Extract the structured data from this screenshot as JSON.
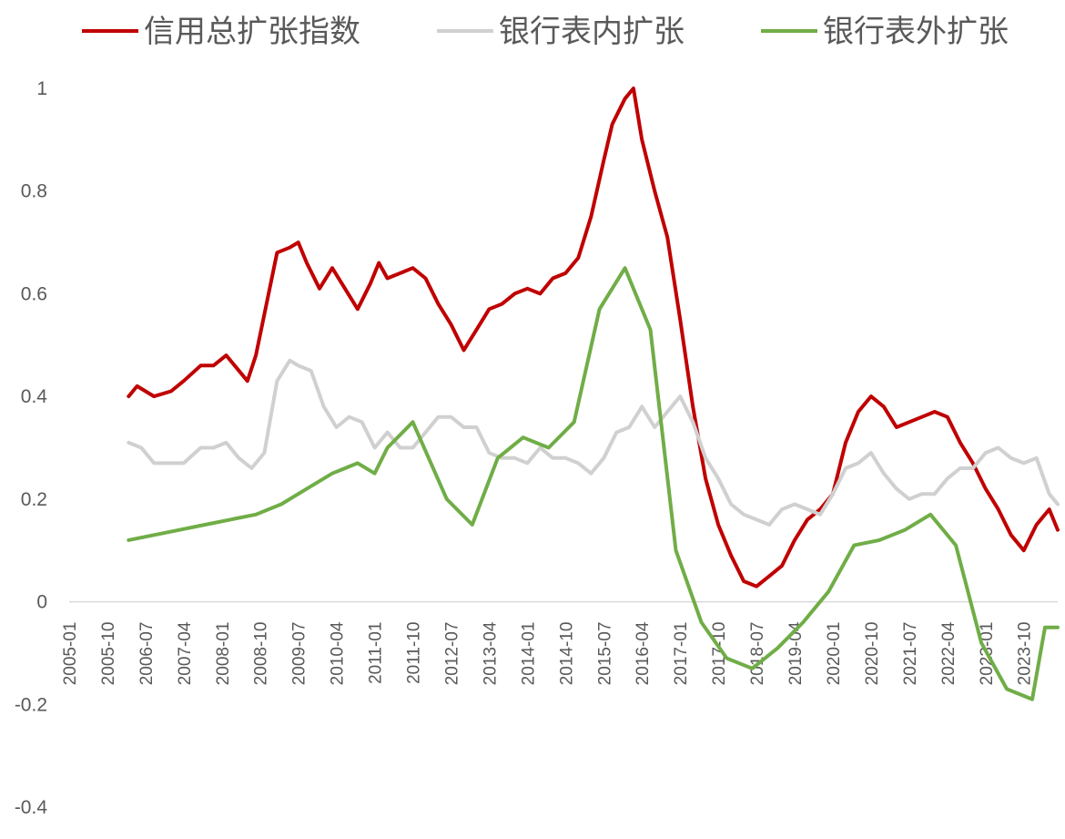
{
  "chart_data": {
    "type": "line",
    "title": "",
    "xlabel": "",
    "ylabel": "",
    "ylim": [
      -0.4,
      1.0
    ],
    "y_ticks": [
      "-0.4",
      "-0.2",
      "0",
      "0.2",
      "0.4",
      "0.6",
      "0.8",
      "1"
    ],
    "x_ticks": [
      "2005-01",
      "2005-10",
      "2006-07",
      "2007-04",
      "2008-01",
      "2008-10",
      "2009-07",
      "2010-04",
      "2011-01",
      "2011-10",
      "2012-07",
      "2013-04",
      "2014-01",
      "2014-10",
      "2015-07",
      "2016-04",
      "2017-01",
      "2017-10",
      "2018-07",
      "2019-04",
      "2020-01",
      "2020-10",
      "2021-07",
      "2022-04",
      "2023-01",
      "2023-10"
    ],
    "x_range": [
      "2005-01",
      "2024-06"
    ],
    "grid": false,
    "legend_position": "top",
    "series": [
      {
        "name": "信用总扩张指数",
        "color": "#C00000",
        "x": [
          "2006-03",
          "2006-05",
          "2006-09",
          "2007-01",
          "2007-04",
          "2007-08",
          "2007-11",
          "2008-02",
          "2008-04",
          "2008-07",
          "2008-09",
          "2008-12",
          "2009-02",
          "2009-05",
          "2009-07",
          "2009-09",
          "2009-12",
          "2010-03",
          "2010-06",
          "2010-09",
          "2010-12",
          "2011-02",
          "2011-04",
          "2011-07",
          "2011-10",
          "2012-01",
          "2012-04",
          "2012-07",
          "2012-10",
          "2013-01",
          "2013-04",
          "2013-07",
          "2013-10",
          "2014-01",
          "2014-04",
          "2014-07",
          "2014-10",
          "2015-01",
          "2015-04",
          "2015-07",
          "2015-09",
          "2015-12",
          "2016-02",
          "2016-04",
          "2016-07",
          "2016-10",
          "2017-01",
          "2017-04",
          "2017-07",
          "2017-10",
          "2018-01",
          "2018-04",
          "2018-07",
          "2018-10",
          "2019-01",
          "2019-04",
          "2019-07",
          "2019-10",
          "2020-01",
          "2020-04",
          "2020-07",
          "2020-10",
          "2021-01",
          "2021-04",
          "2021-07",
          "2021-10",
          "2022-01",
          "2022-04",
          "2022-07",
          "2022-10",
          "2023-01",
          "2023-04",
          "2023-07",
          "2023-10",
          "2024-01",
          "2024-04",
          "2024-06"
        ],
        "values": [
          0.4,
          0.42,
          0.4,
          0.41,
          0.43,
          0.46,
          0.46,
          0.48,
          0.46,
          0.43,
          0.48,
          0.6,
          0.68,
          0.69,
          0.7,
          0.66,
          0.61,
          0.65,
          0.61,
          0.57,
          0.62,
          0.66,
          0.63,
          0.64,
          0.65,
          0.63,
          0.58,
          0.54,
          0.49,
          0.53,
          0.57,
          0.58,
          0.6,
          0.61,
          0.6,
          0.63,
          0.64,
          0.67,
          0.75,
          0.86,
          0.93,
          0.98,
          1.0,
          0.9,
          0.8,
          0.71,
          0.55,
          0.38,
          0.24,
          0.15,
          0.09,
          0.04,
          0.03,
          0.05,
          0.07,
          0.12,
          0.16,
          0.18,
          0.21,
          0.31,
          0.37,
          0.4,
          0.38,
          0.34,
          0.35,
          0.36,
          0.37,
          0.36,
          0.31,
          0.27,
          0.22,
          0.18,
          0.13,
          0.1,
          0.15,
          0.18,
          0.14
        ]
      },
      {
        "name": "银行表内扩张",
        "color": "#D0D0D0",
        "x": [
          "2006-03",
          "2006-06",
          "2006-09",
          "2007-01",
          "2007-04",
          "2007-08",
          "2007-11",
          "2008-02",
          "2008-05",
          "2008-08",
          "2008-11",
          "2009-02",
          "2009-05",
          "2009-07",
          "2009-10",
          "2010-01",
          "2010-04",
          "2010-07",
          "2010-10",
          "2011-01",
          "2011-04",
          "2011-07",
          "2011-10",
          "2012-01",
          "2012-04",
          "2012-07",
          "2012-10",
          "2013-01",
          "2013-04",
          "2013-07",
          "2013-10",
          "2014-01",
          "2014-04",
          "2014-07",
          "2014-10",
          "2015-01",
          "2015-04",
          "2015-07",
          "2015-10",
          "2016-01",
          "2016-04",
          "2016-07",
          "2016-10",
          "2017-01",
          "2017-04",
          "2017-07",
          "2017-10",
          "2018-01",
          "2018-04",
          "2018-07",
          "2018-10",
          "2019-01",
          "2019-04",
          "2019-07",
          "2019-10",
          "2020-01",
          "2020-04",
          "2020-07",
          "2020-10",
          "2021-01",
          "2021-04",
          "2021-07",
          "2021-10",
          "2022-01",
          "2022-04",
          "2022-07",
          "2022-10",
          "2023-01",
          "2023-04",
          "2023-07",
          "2023-10",
          "2024-01",
          "2024-04",
          "2024-06"
        ],
        "values": [
          0.31,
          0.3,
          0.27,
          0.27,
          0.27,
          0.3,
          0.3,
          0.31,
          0.28,
          0.26,
          0.29,
          0.43,
          0.47,
          0.46,
          0.45,
          0.38,
          0.34,
          0.36,
          0.35,
          0.3,
          0.33,
          0.3,
          0.3,
          0.33,
          0.36,
          0.36,
          0.34,
          0.34,
          0.29,
          0.28,
          0.28,
          0.27,
          0.3,
          0.28,
          0.28,
          0.27,
          0.25,
          0.28,
          0.33,
          0.34,
          0.38,
          0.34,
          0.37,
          0.4,
          0.35,
          0.28,
          0.24,
          0.19,
          0.17,
          0.16,
          0.15,
          0.18,
          0.19,
          0.18,
          0.17,
          0.21,
          0.26,
          0.27,
          0.29,
          0.25,
          0.22,
          0.2,
          0.21,
          0.21,
          0.24,
          0.26,
          0.26,
          0.29,
          0.3,
          0.28,
          0.27,
          0.28,
          0.21,
          0.19
        ]
      },
      {
        "name": "银行表外扩张",
        "color": "#70AD47",
        "x": [
          "2006-03",
          "2006-09",
          "2007-03",
          "2007-09",
          "2008-03",
          "2008-09",
          "2009-03",
          "2009-09",
          "2010-03",
          "2010-09",
          "2011-01",
          "2011-04",
          "2011-10",
          "2012-06",
          "2012-12",
          "2013-06",
          "2013-12",
          "2014-06",
          "2014-12",
          "2015-06",
          "2015-12",
          "2016-06",
          "2016-12",
          "2017-06",
          "2017-12",
          "2018-06",
          "2018-12",
          "2019-06",
          "2019-12",
          "2020-06",
          "2020-12",
          "2021-06",
          "2021-12",
          "2022-06",
          "2022-12",
          "2023-06",
          "2023-12",
          "2024-03",
          "2024-06"
        ],
        "values": [
          0.12,
          0.13,
          0.14,
          0.15,
          0.16,
          0.17,
          0.19,
          0.22,
          0.25,
          0.27,
          0.25,
          0.3,
          0.35,
          0.2,
          0.15,
          0.28,
          0.32,
          0.3,
          0.35,
          0.57,
          0.65,
          0.53,
          0.1,
          -0.04,
          -0.11,
          -0.13,
          -0.09,
          -0.04,
          0.02,
          0.11,
          0.12,
          0.14,
          0.17,
          0.11,
          -0.08,
          -0.17,
          -0.19,
          -0.05,
          -0.05
        ]
      }
    ]
  }
}
